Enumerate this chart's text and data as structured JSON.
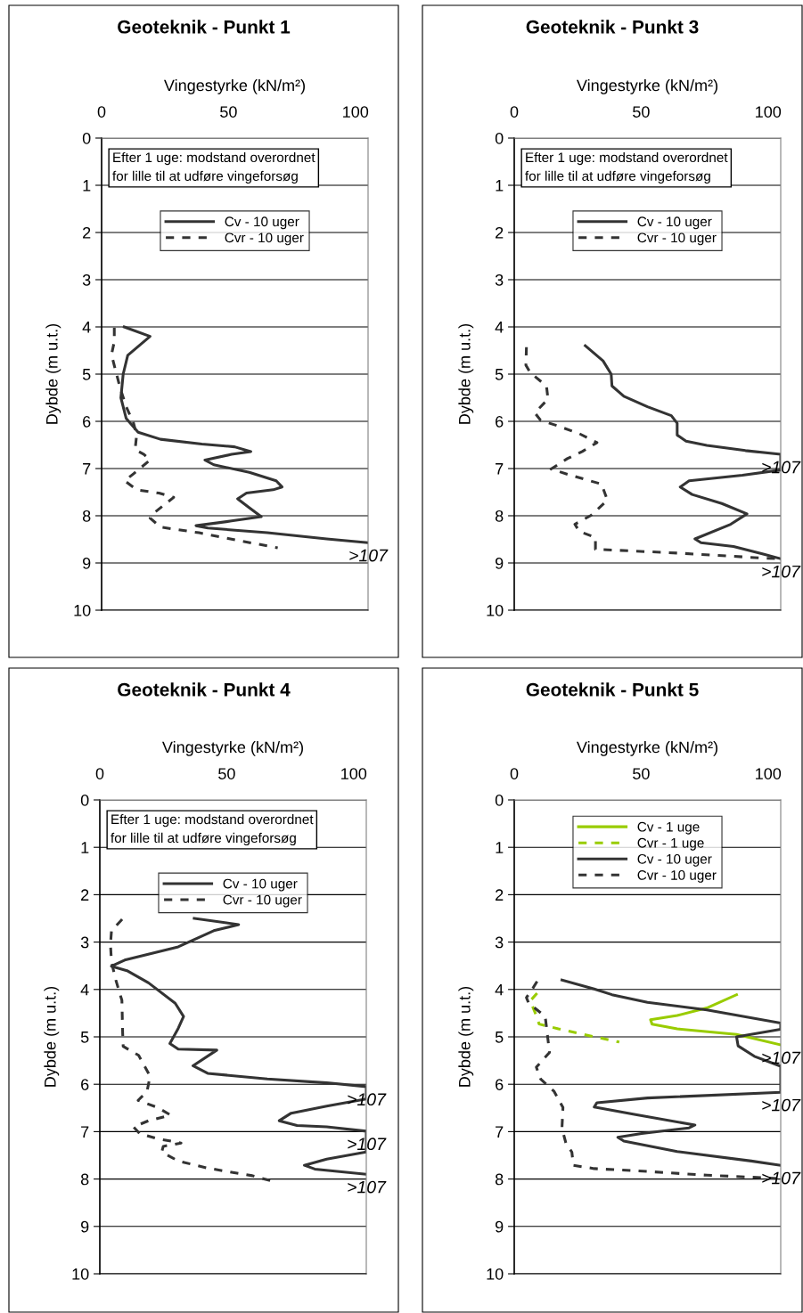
{
  "chart_data": [
    {
      "type": "line",
      "title": "Geoteknik - Punkt 1",
      "xlabel": "Vingestyrke (kN/m²)",
      "ylabel": "Dybde (m u.t.)",
      "xlim": [
        0,
        105
      ],
      "xticks": [
        0,
        50,
        100
      ],
      "ylim": [
        10,
        0
      ],
      "yticks": [
        0,
        1,
        2,
        3,
        4,
        5,
        6,
        7,
        8,
        9,
        10
      ],
      "grid": "y",
      "legend": "top",
      "marker": "none",
      "annotations": [
        "Efter 1 uge: modstand overordnet\nfor lille til at udføre vingeforsøg",
        {
          "text": ">107",
          "y": 8.57
        }
      ],
      "series": [
        {
          "name": "Cv - 10 uger",
          "color": "#333333",
          "line_style": "solid",
          "x": [
            8.9,
            19.1,
            10.3,
            8.5,
            7.6,
            9.7,
            14.4,
            23.2,
            39.5,
            52.4,
            58.8,
            51.2,
            40.7,
            44.2,
            58.2,
            68.8,
            71.1,
            67.6,
            57.1,
            53.6,
            58.2,
            62.9,
            51.2,
            37.2,
            41.9,
            65.3,
            88.7,
            105
          ],
          "values": [
            4.0,
            4.2,
            4.6,
            5.0,
            5.5,
            5.94,
            6.23,
            6.38,
            6.48,
            6.54,
            6.64,
            6.7,
            6.82,
            6.92,
            7.08,
            7.26,
            7.39,
            7.45,
            7.52,
            7.64,
            7.83,
            8.02,
            8.11,
            8.21,
            8.26,
            8.36,
            8.49,
            8.57
          ]
        },
        {
          "name": "Cvr - 10 uger",
          "color": "#333333",
          "line_style": "dashed",
          "x": [
            5.0,
            5.0,
            3.9,
            5.6,
            7.4,
            9.7,
            12.6,
            13.8,
            13.2,
            16.7,
            19.1,
            12.6,
            9.1,
            13.8,
            22.6,
            28.4,
            20.2,
            19.1,
            23.2,
            38.4,
            53.6,
            69.4
          ],
          "values": [
            4.02,
            4.31,
            4.59,
            4.94,
            5.31,
            5.69,
            6.04,
            6.29,
            6.6,
            6.7,
            6.82,
            7.11,
            7.26,
            7.45,
            7.52,
            7.61,
            7.96,
            8.05,
            8.24,
            8.36,
            8.52,
            8.68
          ]
        }
      ]
    },
    {
      "type": "line",
      "title": "Geoteknik - Punkt 3",
      "xlabel": "Vingestyrke (kN/m²)",
      "ylabel": "Dybde (m u.t.)",
      "xlim": [
        0,
        105
      ],
      "xticks": [
        0,
        50,
        100
      ],
      "ylim": [
        10,
        0
      ],
      "yticks": [
        0,
        1,
        2,
        3,
        4,
        5,
        6,
        7,
        8,
        9,
        10
      ],
      "grid": "y",
      "legend": "top",
      "marker": "none",
      "annotations": [
        "Efter 1 uge: modstand overordnet\nfor lille til at udføre vingeforsøg",
        {
          "text": ">107",
          "y": 6.7
        },
        {
          "text": ">107",
          "y": 8.91
        }
      ],
      "series": [
        {
          "name": "Cv - 10 uger",
          "color": "#333333",
          "line_style": "solid",
          "x": [
            28.0,
            35.0,
            38.2,
            38.5,
            43.2,
            52.5,
            61.9,
            64.2,
            64.2,
            67.7,
            75.9,
            91.1,
            105,
            105,
            89.9,
            68.9,
            65.4,
            70.1,
            81.8,
            91.7,
            85.3,
            71.2,
            73.6,
            86.4,
            98.1,
            105
          ],
          "values": [
            4.4,
            4.72,
            5.0,
            5.25,
            5.47,
            5.69,
            5.88,
            6.04,
            6.29,
            6.42,
            6.51,
            6.62,
            6.7,
            7.03,
            7.14,
            7.26,
            7.39,
            7.55,
            7.74,
            7.96,
            8.18,
            8.49,
            8.57,
            8.65,
            8.81,
            8.91
          ]
        },
        {
          "name": "Cvr - 10 uger",
          "color": "#333333",
          "line_style": "dashed",
          "x": [
            4.8,
            4.6,
            6.3,
            12.7,
            13.3,
            8.1,
            10.4,
            17.4,
            25.6,
            32.6,
            26.8,
            20.9,
            14.5,
            22.1,
            34.4,
            36.7,
            30.3,
            23.9,
            25.6,
            32.0,
            32.0,
            64.2,
            99.3,
            105
          ],
          "values": [
            4.43,
            4.81,
            4.97,
            5.25,
            5.53,
            5.82,
            5.98,
            6.1,
            6.26,
            6.45,
            6.64,
            6.79,
            7.01,
            7.14,
            7.33,
            7.67,
            7.99,
            8.18,
            8.33,
            8.46,
            8.71,
            8.79,
            8.9,
            8.91
          ]
        }
      ]
    },
    {
      "type": "line",
      "title": "Geoteknik - Punkt 4",
      "xlabel": "Vingestyrke (kN/m²)",
      "ylabel": "Dybde (m u.t.)",
      "xlim": [
        0,
        105
      ],
      "xticks": [
        0,
        50,
        100
      ],
      "ylim": [
        10,
        0
      ],
      "yticks": [
        0,
        1,
        2,
        3,
        4,
        5,
        6,
        7,
        8,
        9,
        10
      ],
      "grid": "y",
      "legend": "top",
      "marker": "none",
      "annotations": [
        "Efter 1 uge: modstand overordnet\nfor lille til at udføre vingeforsøg",
        {
          "text": ">107",
          "y": 6.05
        },
        {
          "text": ">107",
          "y": 6.99
        },
        {
          "text": ">107",
          "y": 7.9
        }
      ],
      "series": [
        {
          "name": "Cv - 10 uger",
          "color": "#333333",
          "line_style": "solid",
          "x": [
            37.2,
            54.7,
            44.9,
            30.9,
            9.8,
            4.6,
            11.0,
            19.2,
            29.7,
            33.0,
            30.9,
            27.6,
            30.9,
            46.1,
            36.7,
            42.5,
            66.0,
            89.4,
            105,
            105,
            89.4,
            75.4,
            70.7,
            77.7,
            89.4,
            105,
            105,
            89.4,
            80.6,
            84.7,
            105
          ],
          "values": [
            2.5,
            2.63,
            2.76,
            3.1,
            3.38,
            3.51,
            3.61,
            3.86,
            4.29,
            4.57,
            4.82,
            5.14,
            5.26,
            5.28,
            5.61,
            5.77,
            5.89,
            5.97,
            6.05,
            6.31,
            6.46,
            6.61,
            6.77,
            6.87,
            6.9,
            6.99,
            7.43,
            7.58,
            7.71,
            7.79,
            7.9
          ]
        },
        {
          "name": "Cvr - 10 uger",
          "color": "#333333",
          "line_style": "dashed",
          "x": [
            8.8,
            4.6,
            4.2,
            4.6,
            6.3,
            8.7,
            9.0,
            9.2,
            15.3,
            19.8,
            18.6,
            15.1,
            22.7,
            27.9,
            19.2,
            13.3,
            15.7,
            22.7,
            32.0,
            25.0,
            24.4,
            30.9,
            42.5,
            60.1,
            68.3
          ],
          "values": [
            2.52,
            2.76,
            3.05,
            3.42,
            3.8,
            4.23,
            4.92,
            5.2,
            5.39,
            5.83,
            6.15,
            6.34,
            6.49,
            6.65,
            6.77,
            6.9,
            7.04,
            7.15,
            7.24,
            7.31,
            7.43,
            7.62,
            7.77,
            7.93,
            8.05
          ]
        }
      ]
    },
    {
      "type": "line",
      "title": "Geoteknik - Punkt 5",
      "xlabel": "Vingestyrke (kN/m²)",
      "ylabel": "Dybde (m u.t.)",
      "xlim": [
        0,
        105
      ],
      "xticks": [
        0,
        50,
        100
      ],
      "ylim": [
        10,
        0
      ],
      "yticks": [
        0,
        1,
        2,
        3,
        4,
        5,
        6,
        7,
        8,
        9,
        10
      ],
      "grid": "y",
      "legend": "top",
      "marker": "none",
      "annotations": [
        {
          "text": ">107",
          "y": 5.17
        },
        {
          "text": ">107",
          "y": 6.17
        },
        {
          "text": ">107",
          "y": 7.71
        }
      ],
      "series": [
        {
          "name": "Cv - 1 uge",
          "color": "#99cc00",
          "line_style": "solid",
          "x": [
            87.6,
            75.9,
            64.2,
            53.7,
            54.3,
            64.2,
            87.6,
            105
          ],
          "values": [
            4.11,
            4.39,
            4.55,
            4.64,
            4.73,
            4.83,
            4.95,
            5.17
          ]
        },
        {
          "name": "Cvr - 1 uge",
          "color": "#99cc00",
          "line_style": "dashed",
          "x": [
            9.0,
            6.3,
            8.7,
            9.8,
            17.4,
            32.6,
            41.4
          ],
          "values": [
            4.08,
            4.24,
            4.55,
            4.73,
            4.83,
            5.01,
            5.11
          ]
        },
        {
          "name": "Cv - 10 uger",
          "color": "#333333",
          "line_style": "solid",
          "x": [
            18.8,
            31.5,
            38.5,
            52.5,
            75.9,
            105,
            105,
            87.6,
            88.2,
            94.6,
            105,
            105,
            52.5,
            32.6,
            31.5,
            47.8,
            71.2,
            68.9,
            50.2,
            40.8,
            43.2,
            64.2,
            93.4,
            105
          ],
          "values": [
            3.8,
            3.99,
            4.11,
            4.27,
            4.43,
            4.71,
            4.84,
            5.0,
            5.19,
            5.41,
            5.62,
            6.17,
            6.29,
            6.39,
            6.48,
            6.64,
            6.86,
            6.92,
            7.04,
            7.12,
            7.2,
            7.42,
            7.62,
            7.71
          ]
        },
        {
          "name": "Cvr - 10 uger",
          "color": "#333333",
          "line_style": "dashed",
          "x": [
            9.0,
            7.5,
            4.8,
            5.7,
            12.2,
            13.9,
            8.7,
            10.4,
            15.7,
            19.2,
            18.8,
            20.4,
            22.7,
            23.3,
            31.5,
            52.5,
            75.9,
            93.4,
            103.4
          ],
          "values": [
            3.83,
            3.96,
            4.17,
            4.29,
            4.57,
            5.33,
            5.64,
            5.89,
            6.15,
            6.49,
            6.93,
            7.25,
            7.43,
            7.71,
            7.78,
            7.84,
            7.92,
            7.96,
            7.99
          ]
        }
      ]
    }
  ]
}
